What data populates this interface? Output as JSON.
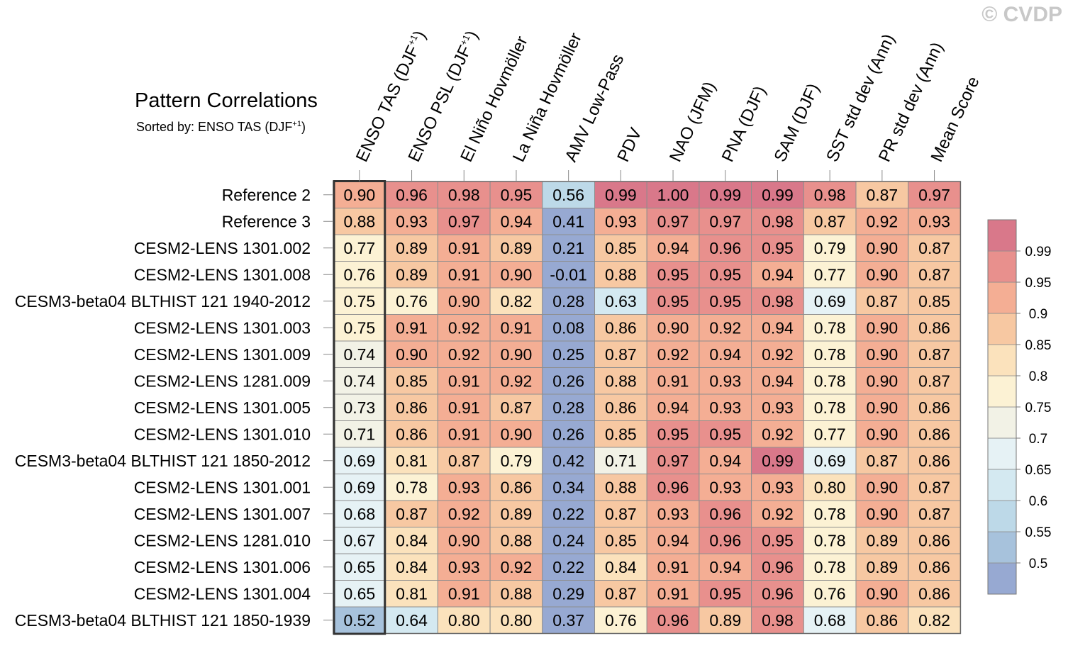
{
  "watermark": "© CVDP",
  "title": "Pattern Correlations",
  "subtitle_prefix": "Sorted by: ENSO TAS (DJF",
  "subtitle_sup": "+1",
  "subtitle_suffix": ")",
  "chart_data": {
    "type": "heatmap",
    "title": "Pattern Correlations",
    "sorted_by": "ENSO TAS (DJF+1)",
    "columns": [
      {
        "label": "ENSO TAS (DJF",
        "sup": "+1",
        "tail": ")"
      },
      {
        "label": "ENSO PSL (DJF",
        "sup": "+1",
        "tail": ")"
      },
      {
        "label": "El Niño Hovmöller",
        "sup": "",
        "tail": ""
      },
      {
        "label": "La Niña Hovmöller",
        "sup": "",
        "tail": ""
      },
      {
        "label": "AMV Low-Pass",
        "sup": "",
        "tail": ""
      },
      {
        "label": "PDV",
        "sup": "",
        "tail": ""
      },
      {
        "label": "NAO (JFM)",
        "sup": "",
        "tail": ""
      },
      {
        "label": "PNA (DJF)",
        "sup": "",
        "tail": ""
      },
      {
        "label": "SAM (DJF)",
        "sup": "",
        "tail": ""
      },
      {
        "label": "SST std dev (Ann)",
        "sup": "",
        "tail": ""
      },
      {
        "label": "PR std dev (Ann)",
        "sup": "",
        "tail": ""
      },
      {
        "label": "Mean Score",
        "sup": "",
        "tail": ""
      }
    ],
    "rows": [
      "Reference 2",
      "Reference 3",
      "CESM2-LENS 1301.002",
      "CESM2-LENS 1301.008",
      "CESM3-beta04 BLTHIST 121 1940-2012",
      "CESM2-LENS 1301.003",
      "CESM2-LENS 1301.009",
      "CESM2-LENS 1281.009",
      "CESM2-LENS 1301.005",
      "CESM2-LENS 1301.010",
      "CESM3-beta04 BLTHIST 121 1850-2012",
      "CESM2-LENS 1301.001",
      "CESM2-LENS 1301.007",
      "CESM2-LENS 1281.010",
      "CESM2-LENS 1301.006",
      "CESM2-LENS 1301.004",
      "CESM3-beta04 BLTHIST 121 1850-1939"
    ],
    "values": [
      [
        "0.90",
        "0.96",
        "0.98",
        "0.95",
        "0.56",
        "0.99",
        "1.00",
        "0.99",
        "0.99",
        "0.98",
        "0.87",
        "0.97"
      ],
      [
        "0.88",
        "0.93",
        "0.97",
        "0.94",
        "0.41",
        "0.93",
        "0.97",
        "0.97",
        "0.98",
        "0.87",
        "0.92",
        "0.93"
      ],
      [
        "0.77",
        "0.89",
        "0.91",
        "0.89",
        "0.21",
        "0.85",
        "0.94",
        "0.96",
        "0.95",
        "0.79",
        "0.90",
        "0.87"
      ],
      [
        "0.76",
        "0.89",
        "0.91",
        "0.90",
        "-0.01",
        "0.88",
        "0.95",
        "0.95",
        "0.94",
        "0.77",
        "0.90",
        "0.87"
      ],
      [
        "0.75",
        "0.76",
        "0.90",
        "0.82",
        "0.28",
        "0.63",
        "0.95",
        "0.95",
        "0.98",
        "0.69",
        "0.87",
        "0.85"
      ],
      [
        "0.75",
        "0.91",
        "0.92",
        "0.91",
        "0.08",
        "0.86",
        "0.90",
        "0.92",
        "0.94",
        "0.78",
        "0.90",
        "0.86"
      ],
      [
        "0.74",
        "0.90",
        "0.92",
        "0.90",
        "0.25",
        "0.87",
        "0.92",
        "0.94",
        "0.92",
        "0.78",
        "0.90",
        "0.87"
      ],
      [
        "0.74",
        "0.85",
        "0.91",
        "0.92",
        "0.26",
        "0.88",
        "0.91",
        "0.93",
        "0.94",
        "0.78",
        "0.90",
        "0.87"
      ],
      [
        "0.73",
        "0.86",
        "0.91",
        "0.87",
        "0.28",
        "0.86",
        "0.94",
        "0.93",
        "0.93",
        "0.78",
        "0.90",
        "0.86"
      ],
      [
        "0.71",
        "0.86",
        "0.91",
        "0.90",
        "0.26",
        "0.85",
        "0.95",
        "0.95",
        "0.92",
        "0.77",
        "0.90",
        "0.86"
      ],
      [
        "0.69",
        "0.81",
        "0.87",
        "0.79",
        "0.42",
        "0.71",
        "0.97",
        "0.94",
        "0.99",
        "0.69",
        "0.87",
        "0.86"
      ],
      [
        "0.69",
        "0.78",
        "0.93",
        "0.86",
        "0.34",
        "0.88",
        "0.96",
        "0.93",
        "0.93",
        "0.80",
        "0.90",
        "0.87"
      ],
      [
        "0.68",
        "0.87",
        "0.92",
        "0.89",
        "0.22",
        "0.87",
        "0.93",
        "0.96",
        "0.92",
        "0.78",
        "0.90",
        "0.87"
      ],
      [
        "0.67",
        "0.84",
        "0.90",
        "0.88",
        "0.24",
        "0.85",
        "0.94",
        "0.96",
        "0.95",
        "0.78",
        "0.89",
        "0.86"
      ],
      [
        "0.65",
        "0.84",
        "0.93",
        "0.92",
        "0.22",
        "0.84",
        "0.91",
        "0.94",
        "0.96",
        "0.78",
        "0.89",
        "0.86"
      ],
      [
        "0.65",
        "0.81",
        "0.91",
        "0.88",
        "0.29",
        "0.87",
        "0.91",
        "0.95",
        "0.96",
        "0.76",
        "0.90",
        "0.86"
      ],
      [
        "0.52",
        "0.64",
        "0.80",
        "0.80",
        "0.37",
        "0.76",
        "0.96",
        "0.89",
        "0.98",
        "0.68",
        "0.86",
        "0.82"
      ]
    ],
    "highlighted_column": 0,
    "colorbar": {
      "levels": [
        "0.5",
        "0.55",
        "0.6",
        "0.65",
        "0.7",
        "0.75",
        "0.8",
        "0.85",
        "0.9",
        "0.95",
        "0.99"
      ],
      "colors": [
        "#97a9d2",
        "#a7c2dc",
        "#bdd9e8",
        "#d4e9f1",
        "#e6f2f5",
        "#f2f2e6",
        "#fcf2d4",
        "#fbe2bc",
        "#f7c8a2",
        "#f4ae94",
        "#e8908d",
        "#d9788a"
      ]
    }
  }
}
